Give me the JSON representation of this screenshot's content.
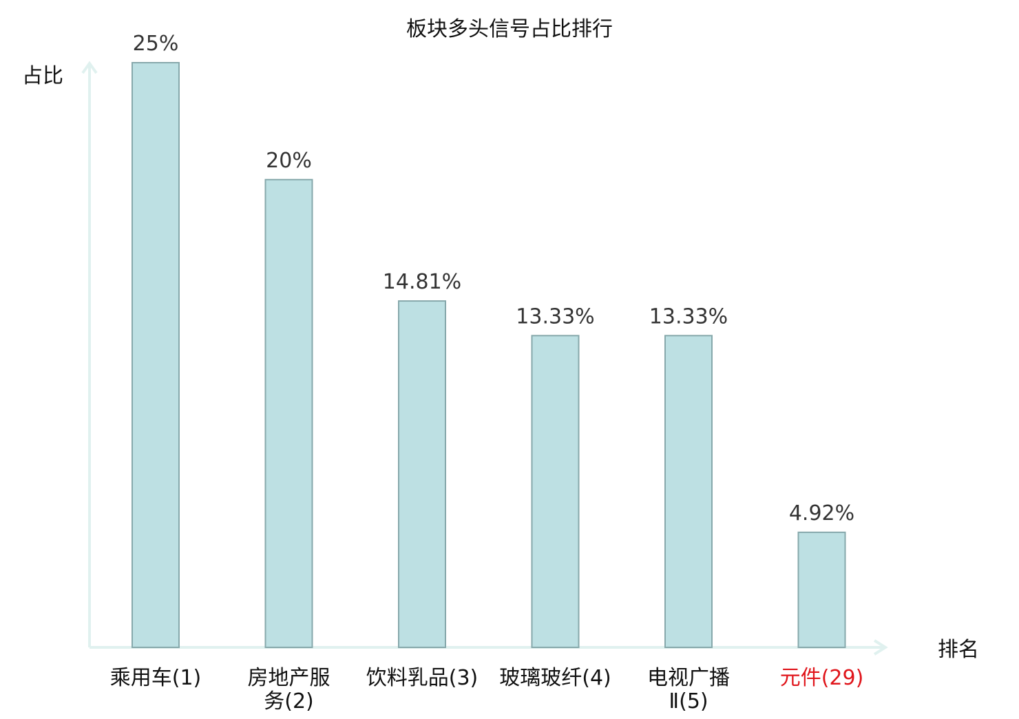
{
  "chart_data": {
    "type": "bar",
    "title": "板块多头信号占比排行",
    "xlabel": "排名",
    "ylabel": "占比",
    "categories": [
      [
        "乘用车",
        "(1)"
      ],
      [
        "房地产服",
        "务(2)"
      ],
      [
        "饮料乳品",
        "(3)"
      ],
      [
        "玻璃玻纤",
        "(4)"
      ],
      [
        "电视广播",
        "Ⅱ(5)"
      ],
      [
        "元件",
        "(29)"
      ]
    ],
    "values": [
      25,
      20,
      14.81,
      13.33,
      13.33,
      4.92
    ],
    "value_labels": [
      "25%",
      "20%",
      "14.81%",
      "13.33%",
      "13.33%",
      "4.92%"
    ],
    "highlight_index": 5,
    "ylim": [
      0,
      25
    ],
    "grid": false,
    "colors": {
      "bar_fill": "#bde0e3",
      "bar_stroke": "#86a8ab",
      "axis": "#e0f1ef",
      "text": "#333333",
      "title": "#111111",
      "highlight": "#e0151b"
    }
  }
}
